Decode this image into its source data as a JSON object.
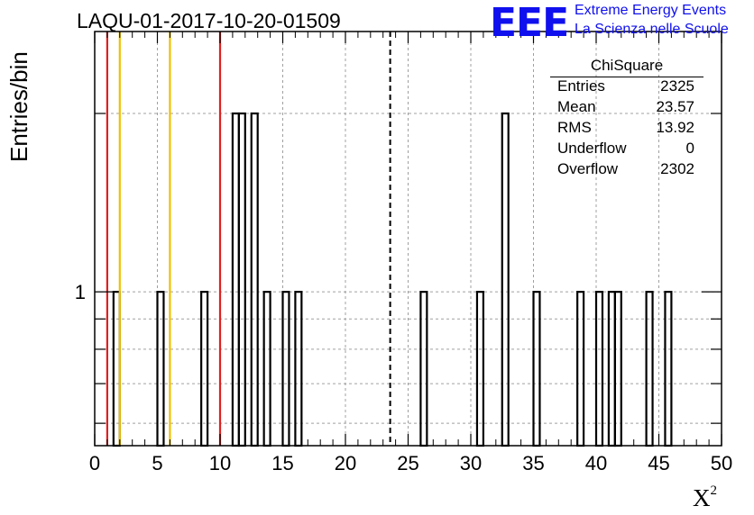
{
  "title": "LAQU-01-2017-10-20-01509",
  "ylabel": "Entries/bin",
  "xlabel": "X",
  "xlabel_sup": "2",
  "logo": {
    "mark": "EEE",
    "line1": "Extreme Energy Events",
    "line2": "La Scienza nelle Scuole",
    "color": "#1010ee"
  },
  "stats": {
    "name": "ChiSquare",
    "rows": [
      {
        "label": "Entries",
        "value": "2325"
      },
      {
        "label": "Mean",
        "value": "23.57"
      },
      {
        "label": "RMS",
        "value": "13.92"
      },
      {
        "label": "Underflow",
        "value": "0"
      },
      {
        "label": "Overflow",
        "value": "2302"
      }
    ]
  },
  "chart_data": {
    "type": "bar",
    "histogram": true,
    "x_ticks": [
      "0",
      "5",
      "10",
      "15",
      "20",
      "25",
      "30",
      "35",
      "40",
      "45",
      "50"
    ],
    "y_tick_label": "1",
    "xlim": [
      0,
      50
    ],
    "ylim": [
      0.55,
      2.75
    ],
    "y_scale": "log",
    "grid": true,
    "bin_width": 0.5,
    "bins": [
      {
        "x": 1.5,
        "y": 1
      },
      {
        "x": 5.0,
        "y": 1
      },
      {
        "x": 8.5,
        "y": 1
      },
      {
        "x": 11.0,
        "y": 2
      },
      {
        "x": 11.5,
        "y": 2
      },
      {
        "x": 12.5,
        "y": 2
      },
      {
        "x": 13.5,
        "y": 1
      },
      {
        "x": 15.0,
        "y": 1
      },
      {
        "x": 16.0,
        "y": 1
      },
      {
        "x": 26.0,
        "y": 1
      },
      {
        "x": 30.5,
        "y": 1
      },
      {
        "x": 32.5,
        "y": 2
      },
      {
        "x": 35.0,
        "y": 1
      },
      {
        "x": 38.5,
        "y": 1
      },
      {
        "x": 40.0,
        "y": 1
      },
      {
        "x": 41.0,
        "y": 1
      },
      {
        "x": 41.5,
        "y": 1
      },
      {
        "x": 44.0,
        "y": 1
      },
      {
        "x": 45.5,
        "y": 1
      }
    ],
    "vertical_lines": [
      {
        "x": 1.0,
        "color": "#e02020",
        "style": "solid"
      },
      {
        "x": 2.0,
        "color": "#f0c000",
        "style": "solid"
      },
      {
        "x": 6.0,
        "color": "#f0c000",
        "style": "solid"
      },
      {
        "x": 10.0,
        "color": "#e02020",
        "style": "solid"
      },
      {
        "x": 23.57,
        "color": "#000000",
        "style": "dashed"
      }
    ]
  }
}
